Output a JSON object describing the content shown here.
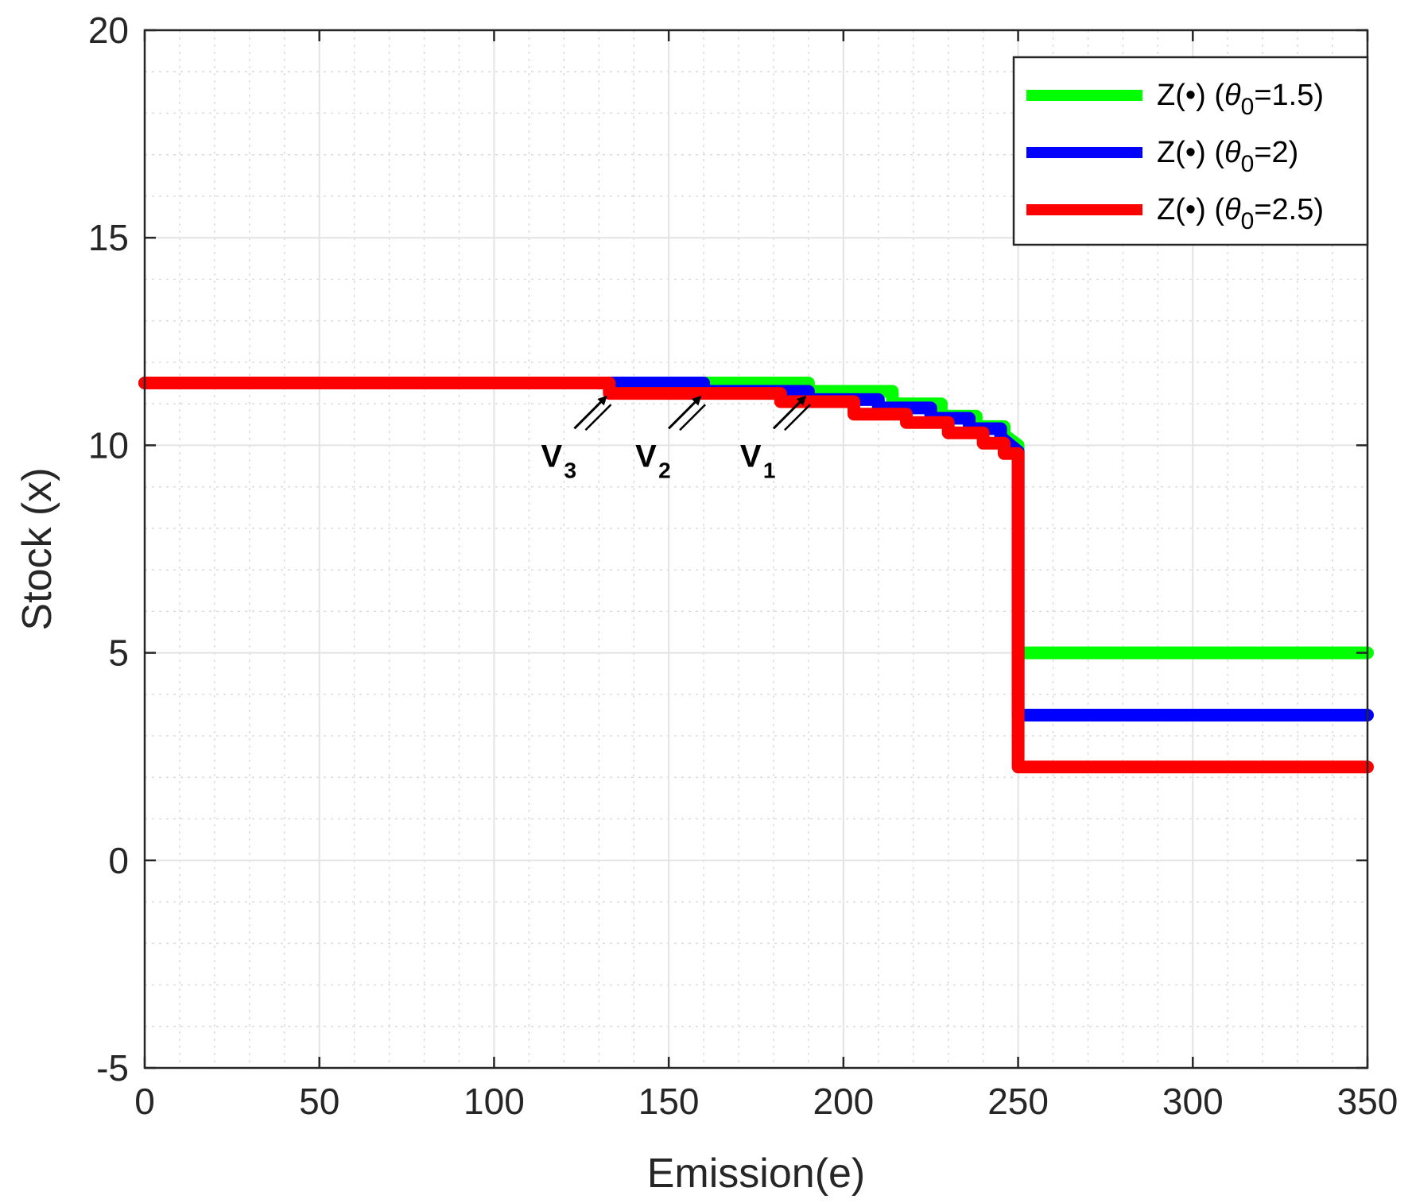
{
  "chart_data": {
    "type": "line",
    "title": "",
    "xlabel": "Emission(e)",
    "ylabel": "Stock (x)",
    "xlim": [
      0,
      350
    ],
    "ylim": [
      -5,
      20
    ],
    "x_ticks": [
      0,
      50,
      100,
      150,
      200,
      250,
      300,
      350
    ],
    "y_ticks": [
      -5,
      0,
      5,
      10,
      15,
      20
    ],
    "x_tick_labels": [
      "0",
      "50",
      "100",
      "150",
      "200",
      "250",
      "300",
      "350"
    ],
    "y_tick_labels": [
      "-5",
      "0",
      "5",
      "10",
      "15",
      "20"
    ],
    "grid": true,
    "minor_grid": true,
    "legend_position": "top-right",
    "series": [
      {
        "name": "Z(•) (θ0=1.5)",
        "legend_main": "Z(•) (",
        "legend_theta": "θ",
        "legend_sub": "0",
        "legend_value": "=1.5)",
        "color": "#00ff00",
        "x": [
          0,
          190,
          190,
          214,
          214,
          228,
          228,
          238,
          238,
          246,
          246,
          250,
          250,
          350
        ],
        "y": [
          11.5,
          11.5,
          11.3,
          11.3,
          11.0,
          11.0,
          10.7,
          10.7,
          10.45,
          10.45,
          10.25,
          10.0,
          5.0,
          5.0
        ]
      },
      {
        "name": "Z(•) (θ0=2)",
        "legend_main": "Z(•) (",
        "legend_theta": "θ",
        "legend_sub": "0",
        "legend_value": "=2)",
        "color": "#0000ff",
        "x": [
          0,
          160,
          160,
          190,
          190,
          210,
          210,
          225,
          225,
          236,
          236,
          245,
          245,
          250,
          250,
          350
        ],
        "y": [
          11.5,
          11.5,
          11.3,
          11.3,
          11.1,
          11.1,
          10.9,
          10.9,
          10.65,
          10.65,
          10.4,
          10.4,
          10.2,
          9.85,
          3.5,
          3.5
        ]
      },
      {
        "name": "Z(•) (θ0=2.5)",
        "legend_main": "Z(•) (",
        "legend_theta": "θ",
        "legend_sub": "0",
        "legend_value": "=2.5)",
        "color": "#ff0000",
        "x": [
          0,
          133,
          133,
          182,
          182,
          203,
          203,
          218,
          218,
          230,
          230,
          240,
          240,
          246,
          246,
          250,
          250,
          350
        ],
        "y": [
          11.5,
          11.5,
          11.25,
          11.25,
          11.05,
          11.05,
          10.75,
          10.75,
          10.55,
          10.55,
          10.3,
          10.3,
          10.05,
          10.05,
          9.8,
          9.8,
          2.25,
          2.25
        ]
      }
    ],
    "annotations": [
      {
        "label": "V",
        "sub": "3",
        "x": 133,
        "y": 11.4
      },
      {
        "label": "V",
        "sub": "2",
        "x": 160,
        "y": 11.4
      },
      {
        "label": "V",
        "sub": "1",
        "x": 190,
        "y": 11.4
      }
    ]
  }
}
